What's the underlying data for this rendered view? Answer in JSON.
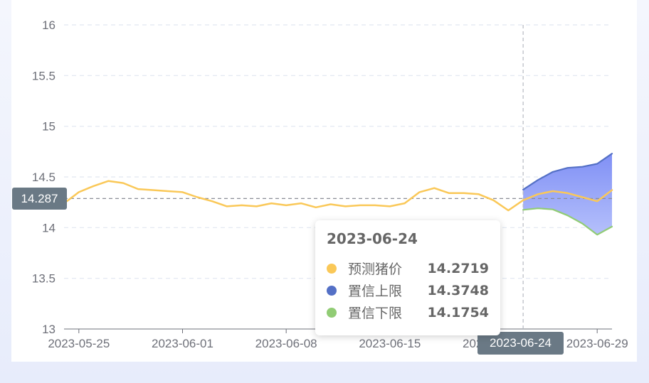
{
  "chart_data": {
    "type": "line",
    "title": "",
    "xlabel": "",
    "ylabel": "",
    "ylim": [
      13,
      16
    ],
    "y_ticks": [
      13,
      13.5,
      14,
      14.5,
      15,
      15.5,
      16
    ],
    "x_start": "2023-05-24",
    "x_end": "2023-06-30",
    "x_ticks": [
      "2023-05-25",
      "2023-06-01",
      "2023-06-08",
      "2023-06-15",
      "2023-06-22",
      "2023-06-29"
    ],
    "grid": true,
    "series": [
      {
        "name": "预测猪价",
        "color": "#fac858",
        "x": [
          "2023-05-24",
          "2023-05-25",
          "2023-05-26",
          "2023-05-27",
          "2023-05-28",
          "2023-05-29",
          "2023-05-30",
          "2023-05-31",
          "2023-06-01",
          "2023-06-02",
          "2023-06-03",
          "2023-06-04",
          "2023-06-05",
          "2023-06-06",
          "2023-06-07",
          "2023-06-08",
          "2023-06-09",
          "2023-06-10",
          "2023-06-11",
          "2023-06-12",
          "2023-06-13",
          "2023-06-14",
          "2023-06-15",
          "2023-06-16",
          "2023-06-17",
          "2023-06-18",
          "2023-06-19",
          "2023-06-20",
          "2023-06-21",
          "2023-06-22",
          "2023-06-23",
          "2023-06-24",
          "2023-06-25",
          "2023-06-26",
          "2023-06-27",
          "2023-06-28",
          "2023-06-29",
          "2023-06-30"
        ],
        "values": [
          14.24,
          14.35,
          14.41,
          14.46,
          14.44,
          14.38,
          14.37,
          14.36,
          14.35,
          14.3,
          14.26,
          14.21,
          14.22,
          14.21,
          14.24,
          14.22,
          14.24,
          14.2,
          14.23,
          14.21,
          14.22,
          14.22,
          14.21,
          14.24,
          14.35,
          14.39,
          14.34,
          14.34,
          14.33,
          14.27,
          14.17,
          14.27,
          14.33,
          14.36,
          14.34,
          14.3,
          14.26,
          14.37
        ]
      },
      {
        "name": "置信上限",
        "color": "#5470c6",
        "x": [
          "2023-06-24",
          "2023-06-25",
          "2023-06-26",
          "2023-06-27",
          "2023-06-28",
          "2023-06-29",
          "2023-06-30"
        ],
        "values": [
          14.3748,
          14.47,
          14.55,
          14.59,
          14.6,
          14.63,
          14.73
        ]
      },
      {
        "name": "置信下限",
        "color": "#91cc75",
        "x": [
          "2023-06-24",
          "2023-06-25",
          "2023-06-26",
          "2023-06-27",
          "2023-06-28",
          "2023-06-29",
          "2023-06-30"
        ],
        "values": [
          14.1754,
          14.19,
          14.18,
          14.12,
          14.04,
          13.93,
          14.01
        ]
      }
    ],
    "band_fill_top": "#8090f5",
    "band_fill_bottom": "#b5c0fb"
  },
  "axis_pointer": {
    "y_label": "14.287",
    "y_value": 14.287,
    "x_label": "2023-06-24",
    "x_value": "2023-06-24"
  },
  "tooltip": {
    "title": "2023-06-24",
    "rows": [
      {
        "name": "预测猪价",
        "value": "14.2719",
        "color": "#fac858"
      },
      {
        "name": "置信上限",
        "value": "14.3748",
        "color": "#5470c6"
      },
      {
        "name": "置信下限",
        "value": "14.1754",
        "color": "#91cc75"
      }
    ]
  }
}
